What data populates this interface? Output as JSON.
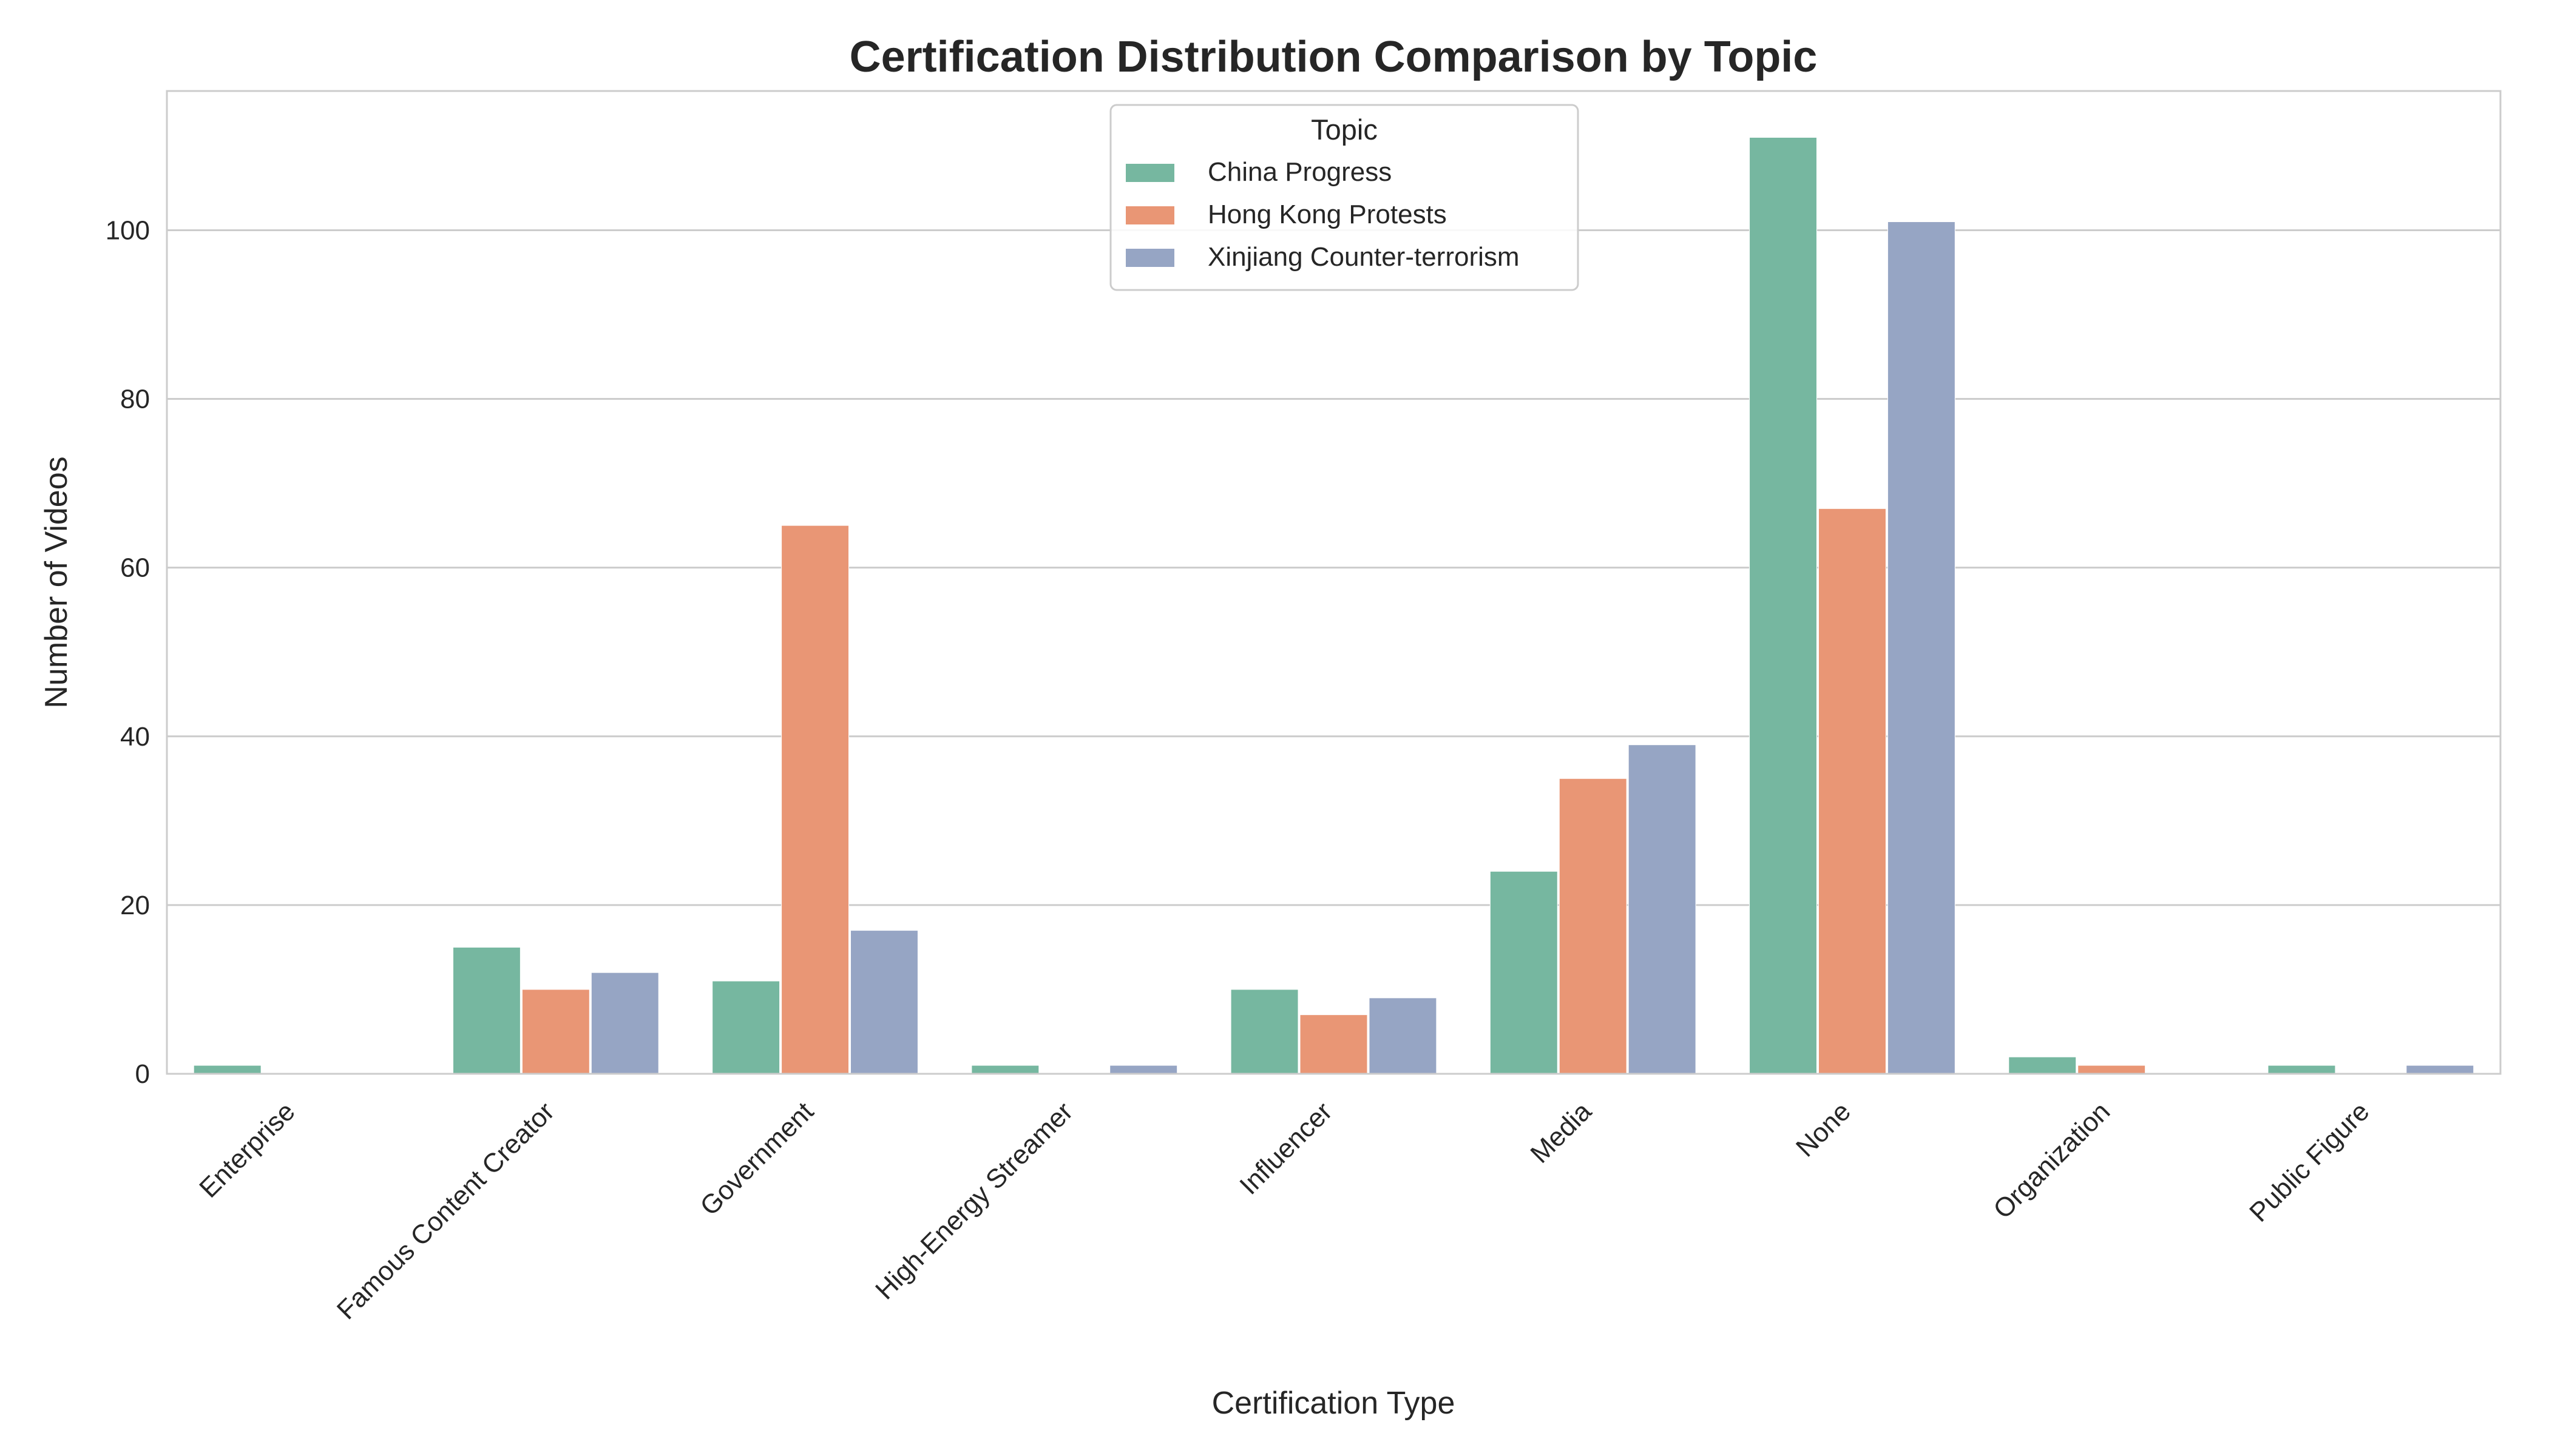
{
  "chart_data": {
    "type": "bar",
    "title": "Certification Distribution Comparison by Topic",
    "xlabel": "Certification Type",
    "ylabel": "Number of Videos",
    "categories": [
      "Enterprise",
      "Famous Content Creator",
      "Government",
      "High-Energy Streamer",
      "Influencer",
      "Media",
      "None",
      "Organization",
      "Public Figure"
    ],
    "series": [
      {
        "name": "China Progress",
        "color": "#76b7a0",
        "values": [
          1,
          15,
          11,
          1,
          10,
          24,
          111,
          2,
          1
        ]
      },
      {
        "name": "Hong Kong Protests",
        "color": "#e99675",
        "values": [
          0,
          10,
          65,
          0,
          7,
          35,
          67,
          1,
          0
        ]
      },
      {
        "name": "Xinjiang Counter-terrorism",
        "color": "#96a5c4",
        "values": [
          0,
          12,
          17,
          1,
          9,
          39,
          101,
          0,
          1
        ]
      }
    ],
    "ylim": [
      0,
      116.5
    ],
    "yticks": [
      0,
      20,
      40,
      60,
      80,
      100
    ],
    "grid": true,
    "legend": {
      "title": "Topic",
      "placement": "top-center"
    }
  }
}
